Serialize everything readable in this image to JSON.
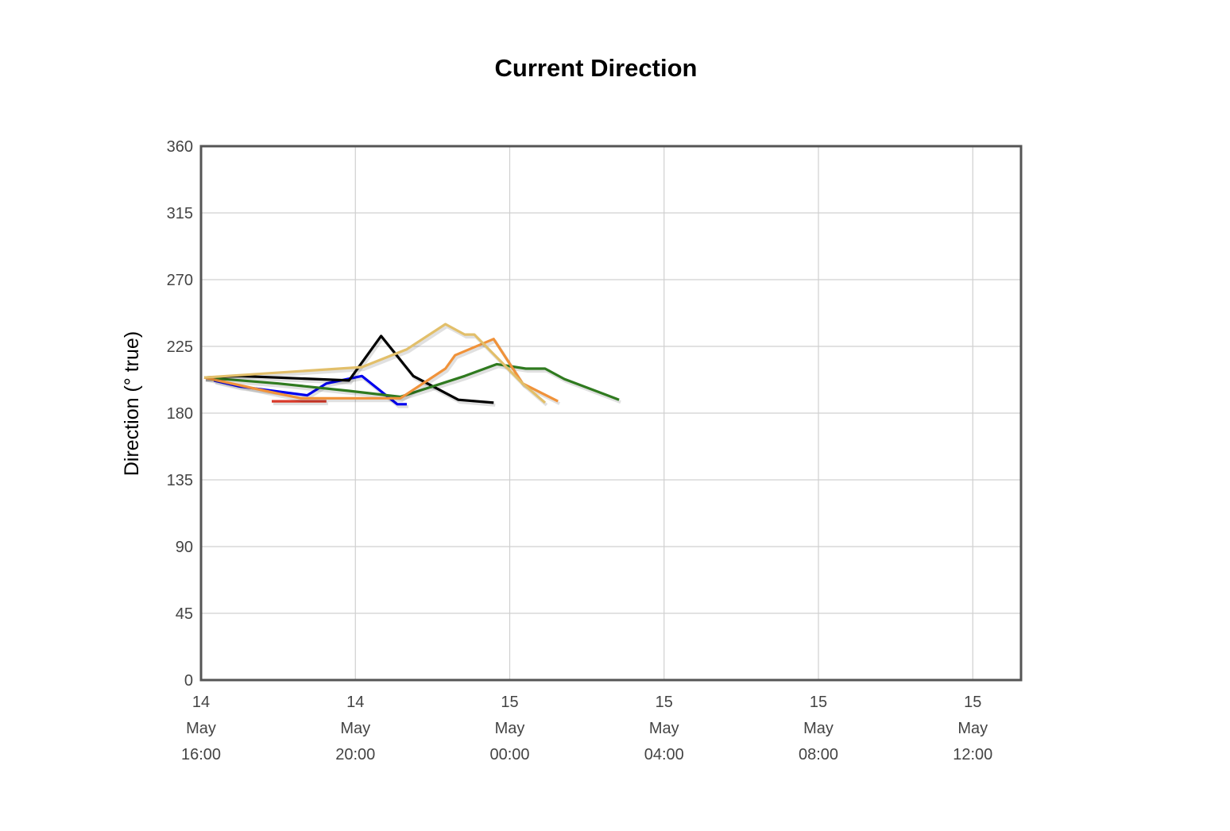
{
  "chart_data": {
    "type": "line",
    "title": "Current Direction",
    "ylabel": "Direction (° true)",
    "xlabel": "",
    "ylim": [
      0,
      360
    ],
    "yticks": [
      0,
      45,
      90,
      135,
      180,
      225,
      270,
      315,
      360
    ],
    "xlim": [
      "2024-05-14T16:00",
      "2024-05-15T13:15"
    ],
    "xticks": [
      {
        "t": "2024-05-14T16:00",
        "lines": [
          "14",
          "May",
          "16:00"
        ]
      },
      {
        "t": "2024-05-14T20:00",
        "lines": [
          "14",
          "May",
          "20:00"
        ]
      },
      {
        "t": "2024-05-15T00:00",
        "lines": [
          "15",
          "May",
          "00:00"
        ]
      },
      {
        "t": "2024-05-15T04:00",
        "lines": [
          "15",
          "May",
          "04:00"
        ]
      },
      {
        "t": "2024-05-15T08:00",
        "lines": [
          "15",
          "May",
          "08:00"
        ]
      },
      {
        "t": "2024-05-15T12:00",
        "lines": [
          "15",
          "May",
          "12:00"
        ]
      }
    ],
    "grid": true,
    "series": [
      {
        "color": "#d93a2b",
        "points": [
          [
            "2024-05-14T17:50",
            188
          ],
          [
            "2024-05-14T18:35",
            188
          ],
          [
            "2024-05-14T19:15",
            188
          ]
        ]
      },
      {
        "color": "#0000ee",
        "points": [
          [
            "2024-05-14T16:20",
            202
          ],
          [
            "2024-05-14T17:00",
            198
          ],
          [
            "2024-05-14T18:45",
            192
          ],
          [
            "2024-05-14T19:15",
            200
          ],
          [
            "2024-05-14T20:10",
            205
          ],
          [
            "2024-05-14T21:05",
            186
          ],
          [
            "2024-05-14T21:20",
            186
          ]
        ]
      },
      {
        "color": "#000000",
        "points": [
          [
            "2024-05-14T16:05",
            204
          ],
          [
            "2024-05-14T17:00",
            205
          ],
          [
            "2024-05-14T19:50",
            202
          ],
          [
            "2024-05-14T20:40",
            232
          ],
          [
            "2024-05-14T21:30",
            205
          ],
          [
            "2024-05-14T22:40",
            189
          ],
          [
            "2024-05-14T23:35",
            187
          ]
        ]
      },
      {
        "color": "#2f7a1f",
        "points": [
          [
            "2024-05-14T16:05",
            204
          ],
          [
            "2024-05-14T18:00",
            200
          ],
          [
            "2024-05-14T19:50",
            195
          ],
          [
            "2024-05-14T21:10",
            191
          ],
          [
            "2024-05-14T22:50",
            205
          ],
          [
            "2024-05-14T23:40",
            213
          ],
          [
            "2024-05-15T00:25",
            210
          ],
          [
            "2024-05-15T00:55",
            210
          ],
          [
            "2024-05-15T01:25",
            203
          ],
          [
            "2024-05-15T02:50",
            189
          ]
        ]
      },
      {
        "color": "#f0923a",
        "points": [
          [
            "2024-05-14T16:05",
            204
          ],
          [
            "2024-05-14T17:40",
            195
          ],
          [
            "2024-05-14T18:35",
            190
          ],
          [
            "2024-05-14T21:10",
            190
          ],
          [
            "2024-05-14T22:20",
            210
          ],
          [
            "2024-05-14T22:35",
            219
          ],
          [
            "2024-05-14T23:35",
            230
          ],
          [
            "2024-05-15T00:20",
            200
          ],
          [
            "2024-05-15T01:15",
            188
          ]
        ]
      },
      {
        "color": "#e2bf6a",
        "points": [
          [
            "2024-05-14T16:05",
            204
          ],
          [
            "2024-05-14T20:10",
            211
          ],
          [
            "2024-05-14T21:20",
            223
          ],
          [
            "2024-05-14T22:20",
            240
          ],
          [
            "2024-05-14T22:50",
            233
          ],
          [
            "2024-05-14T23:05",
            233
          ],
          [
            "2024-05-15T00:20",
            200
          ],
          [
            "2024-05-15T00:55",
            187
          ]
        ]
      }
    ]
  }
}
